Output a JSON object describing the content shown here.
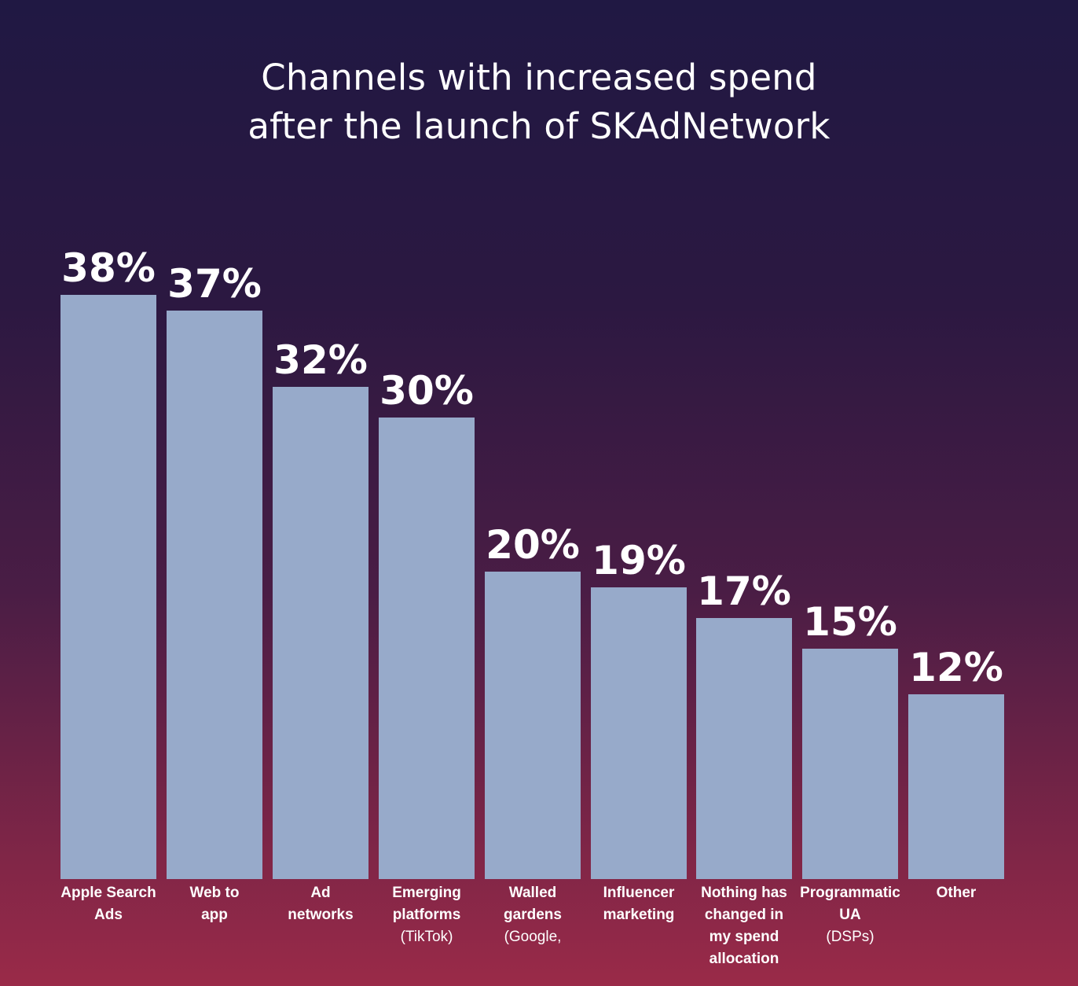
{
  "chart_data": {
    "type": "bar",
    "title_lines": [
      "Channels with increased spend",
      "after the launch of SKAdNetwork"
    ],
    "categories": [
      {
        "label": "Apple Search Ads",
        "sub": ""
      },
      {
        "label": "Web to app",
        "sub": ""
      },
      {
        "label": "Ad networks",
        "sub": ""
      },
      {
        "label": "Emerging platforms",
        "sub": "(TikTok)"
      },
      {
        "label": "Walled gardens",
        "sub": "(Google,"
      },
      {
        "label": "Influencer marketing",
        "sub": ""
      },
      {
        "label": "Nothing has changed in my spend allocation",
        "sub": ""
      },
      {
        "label": "Programmatic UA",
        "sub": "(DSPs)"
      },
      {
        "label": "Other",
        "sub": ""
      }
    ],
    "values": [
      38,
      37,
      32,
      30,
      20,
      19,
      17,
      15,
      12
    ],
    "value_labels": [
      "38%",
      "37%",
      "32%",
      "30%",
      "20%",
      "19%",
      "17%",
      "15%",
      "12%"
    ],
    "unit": "%",
    "grid": false,
    "legend": "none",
    "colors": {
      "bar": "#97aaca",
      "background_top": "#201843",
      "background_bottom": "#9a2a48",
      "text": "#ffffff"
    }
  }
}
